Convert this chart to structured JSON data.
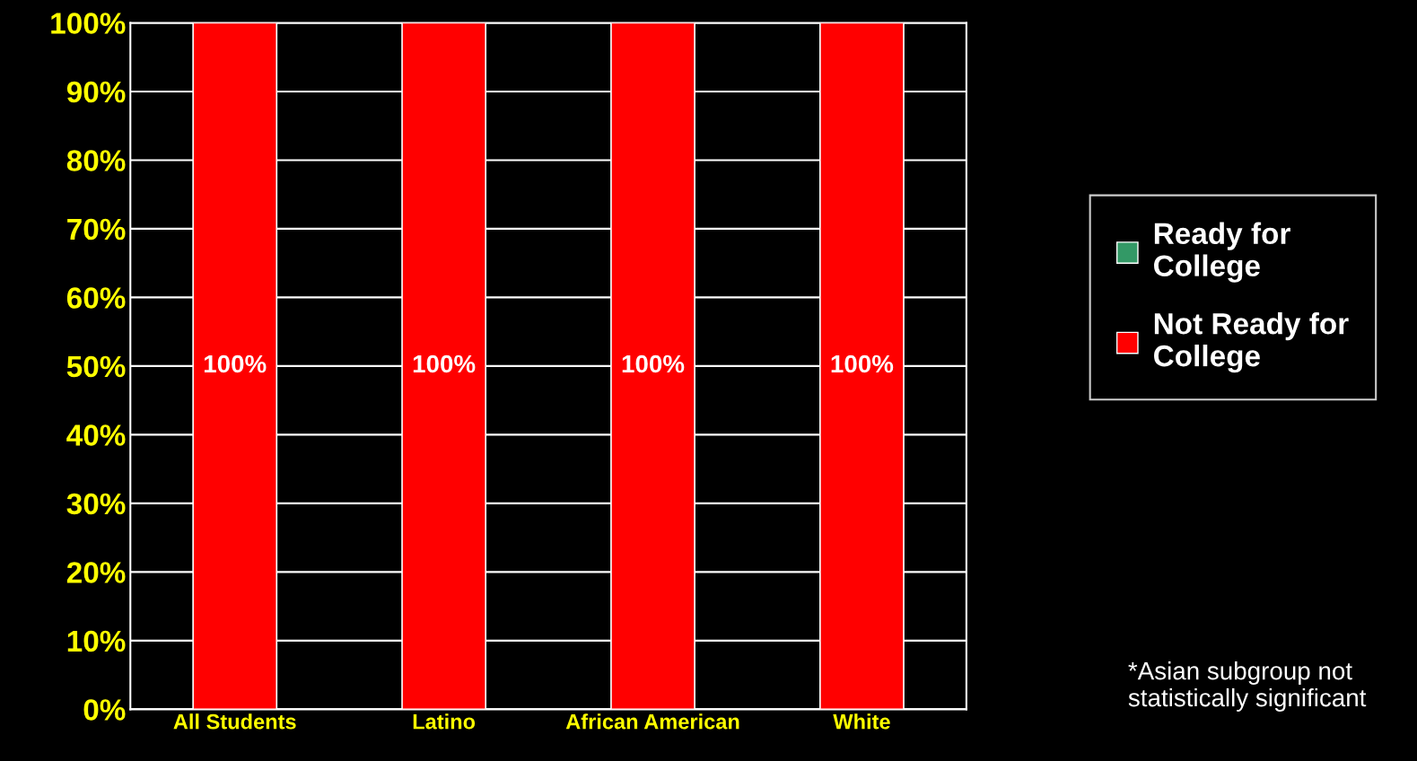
{
  "chart_data": {
    "type": "bar",
    "stacked": true,
    "categories": [
      "All Students",
      "Latino",
      "African American",
      "White"
    ],
    "series": [
      {
        "name": "Ready for College",
        "color": "#339966",
        "values": [
          0,
          0,
          0,
          0
        ]
      },
      {
        "name": "Not Ready for College",
        "color": "#ff0000",
        "values": [
          100,
          100,
          100,
          100
        ],
        "value_labels": [
          "100%",
          "100%",
          "100%",
          "100%"
        ]
      }
    ],
    "ylim": [
      0,
      100
    ],
    "yticks": [
      {
        "value": 0,
        "label": "0%"
      },
      {
        "value": 10,
        "label": "10%"
      },
      {
        "value": 20,
        "label": "20%"
      },
      {
        "value": 30,
        "label": "30%"
      },
      {
        "value": 40,
        "label": "40%"
      },
      {
        "value": 50,
        "label": "50%"
      },
      {
        "value": 60,
        "label": "60%"
      },
      {
        "value": 70,
        "label": "70%"
      },
      {
        "value": 80,
        "label": "80%"
      },
      {
        "value": 90,
        "label": "90%"
      },
      {
        "value": 100,
        "label": "100%"
      }
    ],
    "grid": "y",
    "legend": "right",
    "annotations": [
      "*Asian subgroup not statistically significant"
    ]
  }
}
